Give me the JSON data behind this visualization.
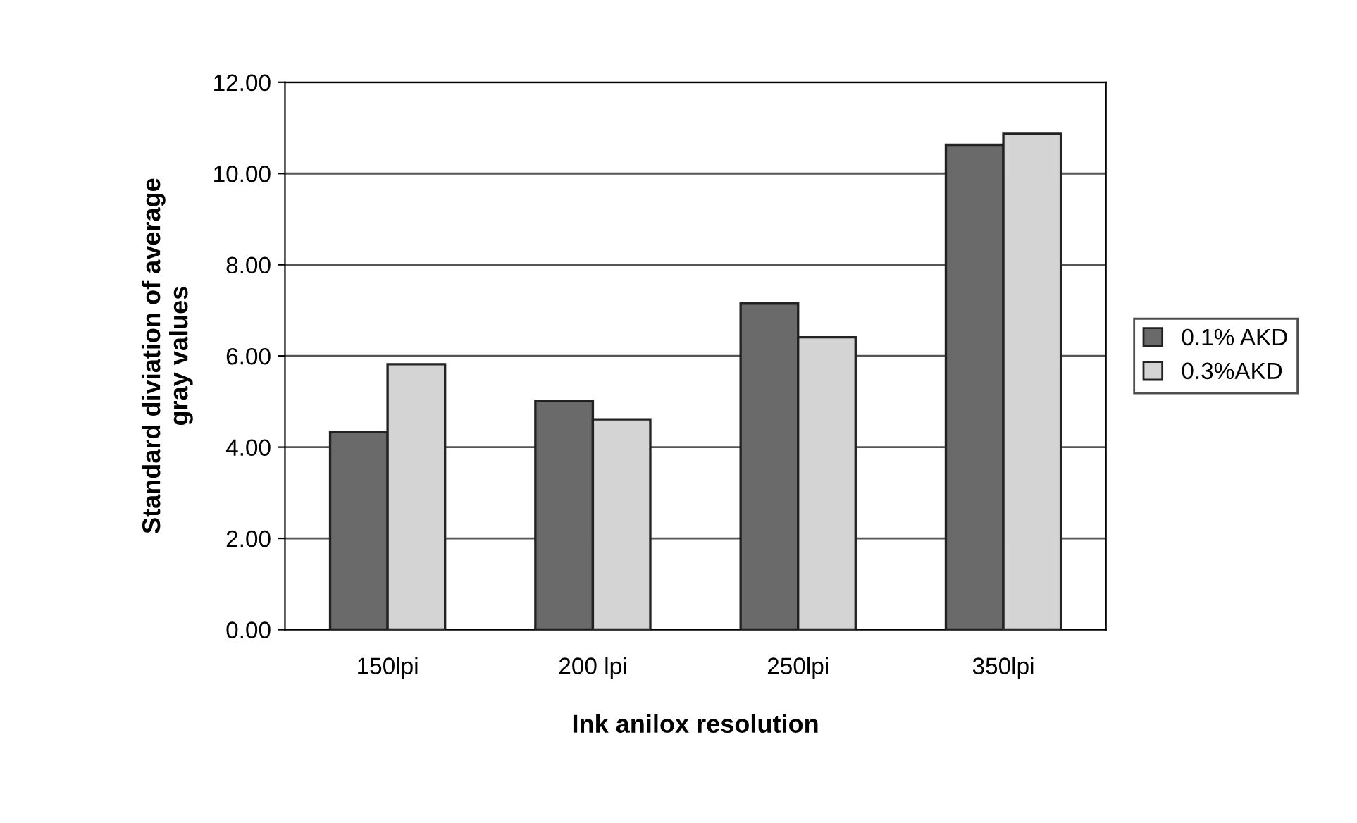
{
  "chart_data": {
    "type": "bar",
    "xlabel": "Ink anilox resolution",
    "ylabel": "Standard diviation of average\ngray values",
    "categories": [
      "150lpi",
      "200 lpi",
      "250lpi",
      "350lpi"
    ],
    "series": [
      {
        "name": "0.1% AKD",
        "color": "#6a6a6a",
        "values": [
          4.33,
          5.02,
          7.15,
          10.63
        ]
      },
      {
        "name": "0.3%AKD",
        "color": "#d4d4d4",
        "values": [
          5.82,
          4.61,
          6.41,
          10.87
        ]
      }
    ],
    "ylim": [
      0,
      12
    ],
    "yticks": [
      {
        "value": 0,
        "label": "0.00"
      },
      {
        "value": 2,
        "label": "2.00"
      },
      {
        "value": 4,
        "label": "4.00"
      },
      {
        "value": 6,
        "label": "6.00"
      },
      {
        "value": 8,
        "label": "8.00"
      },
      {
        "value": 10,
        "label": "10.00"
      },
      {
        "value": 12,
        "label": "12.00"
      }
    ],
    "grid": "y",
    "legend": "right"
  }
}
